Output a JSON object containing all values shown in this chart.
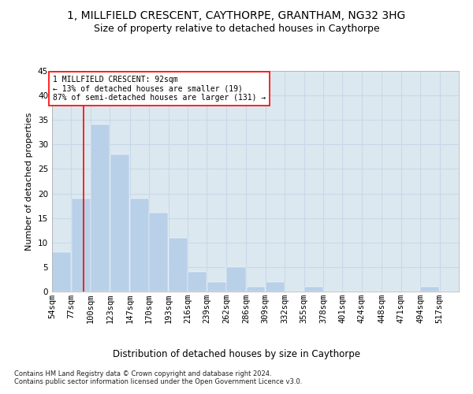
{
  "title1": "1, MILLFIELD CRESCENT, CAYTHORPE, GRANTHAM, NG32 3HG",
  "title2": "Size of property relative to detached houses in Caythorpe",
  "xlabel": "Distribution of detached houses by size in Caythorpe",
  "ylabel": "Number of detached properties",
  "bin_labels": [
    "54sqm",
    "77sqm",
    "100sqm",
    "123sqm",
    "147sqm",
    "170sqm",
    "193sqm",
    "216sqm",
    "239sqm",
    "262sqm",
    "286sqm",
    "309sqm",
    "332sqm",
    "355sqm",
    "378sqm",
    "401sqm",
    "424sqm",
    "448sqm",
    "471sqm",
    "494sqm",
    "517sqm"
  ],
  "bin_edges": [
    54,
    77,
    100,
    123,
    147,
    170,
    193,
    216,
    239,
    262,
    286,
    309,
    332,
    355,
    378,
    401,
    424,
    448,
    471,
    494,
    517,
    540
  ],
  "bar_values": [
    8,
    19,
    34,
    28,
    19,
    16,
    11,
    4,
    2,
    5,
    1,
    2,
    0,
    1,
    0,
    0,
    0,
    0,
    0,
    1,
    0
  ],
  "bar_color": "#b8d0e8",
  "bar_edgecolor": "#b8d0e8",
  "grid_color": "#c8d8e8",
  "background_color": "#dce8f0",
  "red_line_x": 92,
  "annotation_line1": "1 MILLFIELD CRESCENT: 92sqm",
  "annotation_line2": "← 13% of detached houses are smaller (19)",
  "annotation_line3": "87% of semi-detached houses are larger (131) →",
  "annotation_box_color": "white",
  "annotation_border_color": "red",
  "footnote": "Contains HM Land Registry data © Crown copyright and database right 2024.\nContains public sector information licensed under the Open Government Licence v3.0.",
  "ylim": [
    0,
    45
  ],
  "yticks": [
    0,
    5,
    10,
    15,
    20,
    25,
    30,
    35,
    40,
    45
  ],
  "title1_fontsize": 10,
  "title2_fontsize": 9,
  "xlabel_fontsize": 8.5,
  "ylabel_fontsize": 8,
  "tick_fontsize": 7.5,
  "footnote_fontsize": 6
}
